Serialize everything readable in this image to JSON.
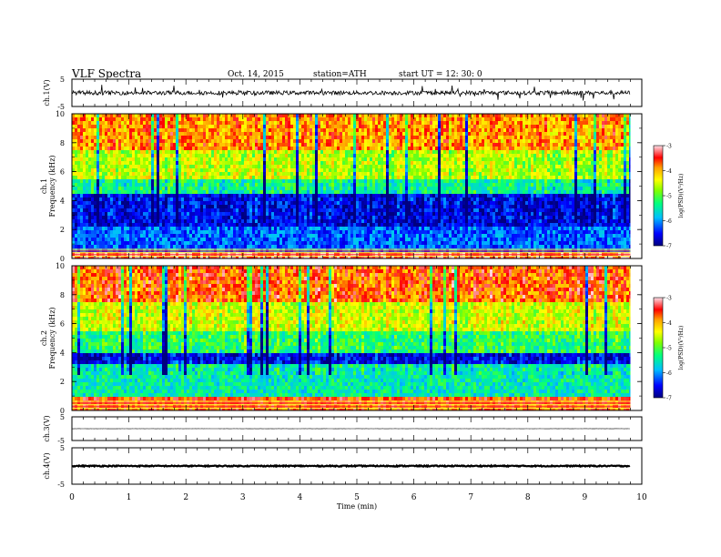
{
  "header": {
    "title": "VLF  Spectra",
    "date": "Oct. 14, 2015",
    "station": "station=ATH",
    "start": "start  UT  =   12: 30: 0"
  },
  "chart_data": [
    {
      "type": "line",
      "panel": "ch1",
      "ylabel": "ch.1(V)",
      "ylim": [
        -5,
        5
      ],
      "yticks": [
        "5",
        "-5"
      ],
      "description_values": {
        "baseline": 0,
        "typical_amplitude": 1.5,
        "spike_max": 3
      }
    },
    {
      "type": "heatmap",
      "panel": "ch1_spectrogram",
      "ylabel_channel": "ch.1",
      "ylabel": "Frequency  (kHz)",
      "ylim": [
        0,
        10
      ],
      "yticks": [
        "0",
        "2",
        "4",
        "6",
        "8",
        "10"
      ],
      "xlim": [
        0,
        9.8
      ],
      "colorbar": {
        "label": "log(PSD)(V²/Hz)",
        "range": [
          -7,
          -3
        ],
        "ticks": [
          "-3",
          "-4",
          "-5",
          "-6",
          "-7"
        ]
      },
      "bands_kHz": [
        {
          "from": 0,
          "to": 0.5,
          "value": -3.3
        },
        {
          "from": 0.5,
          "to": 2.2,
          "value": -6.2
        },
        {
          "from": 2.2,
          "to": 4.5,
          "value": -6.6
        },
        {
          "from": 4.5,
          "to": 5.5,
          "value": -5.4
        },
        {
          "from": 5.5,
          "to": 7.5,
          "value": -4.6
        },
        {
          "from": 7.5,
          "to": 10,
          "value": -3.9
        }
      ]
    },
    {
      "type": "heatmap",
      "panel": "ch2_spectrogram",
      "ylabel_channel": "ch.2",
      "ylabel": "Frequency  (kHz)",
      "ylim": [
        0,
        10
      ],
      "yticks": [
        "0",
        "2",
        "4",
        "6",
        "8",
        "10"
      ],
      "xlim": [
        0,
        9.8
      ],
      "colorbar": {
        "label": "log(PSD)(V²/Hz)",
        "range": [
          -7,
          -3
        ],
        "ticks": [
          "-3",
          "-4",
          "-5",
          "-6",
          "-7"
        ]
      },
      "bands_kHz": [
        {
          "from": 0,
          "to": 1,
          "value": -3.6
        },
        {
          "from": 1,
          "to": 3.2,
          "value": -5.5
        },
        {
          "from": 3.2,
          "to": 4,
          "value": -6.6
        },
        {
          "from": 4,
          "to": 5.5,
          "value": -5.2
        },
        {
          "from": 5.5,
          "to": 7.5,
          "value": -4.5
        },
        {
          "from": 7.5,
          "to": 10,
          "value": -3.7
        }
      ]
    },
    {
      "type": "line",
      "panel": "ch3",
      "ylabel": "ch.3(V)",
      "ylim": [
        -5,
        5
      ],
      "yticks": [
        "5",
        "-5"
      ],
      "description_values": {
        "baseline": 0,
        "typical_amplitude": 0.1
      }
    },
    {
      "type": "line",
      "panel": "ch4",
      "ylabel": "ch.4(V)",
      "ylim": [
        -5,
        5
      ],
      "yticks": [
        "5",
        "-5"
      ],
      "description_values": {
        "baseline": 0,
        "typical_amplitude": 0.3
      }
    }
  ],
  "xaxis": {
    "label": "Time  (min)",
    "xlim": [
      0,
      10
    ],
    "ticks": [
      "0",
      "1",
      "2",
      "3",
      "4",
      "5",
      "6",
      "7",
      "8",
      "9",
      "10"
    ],
    "data_end": 9.8
  },
  "colors": {
    "scale": [
      "#00008b",
      "#0000ff",
      "#00bfff",
      "#00ff7f",
      "#7fff00",
      "#ffff00",
      "#ffa500",
      "#ff0000",
      "#ffc0cb"
    ],
    "trace": "#000000"
  }
}
